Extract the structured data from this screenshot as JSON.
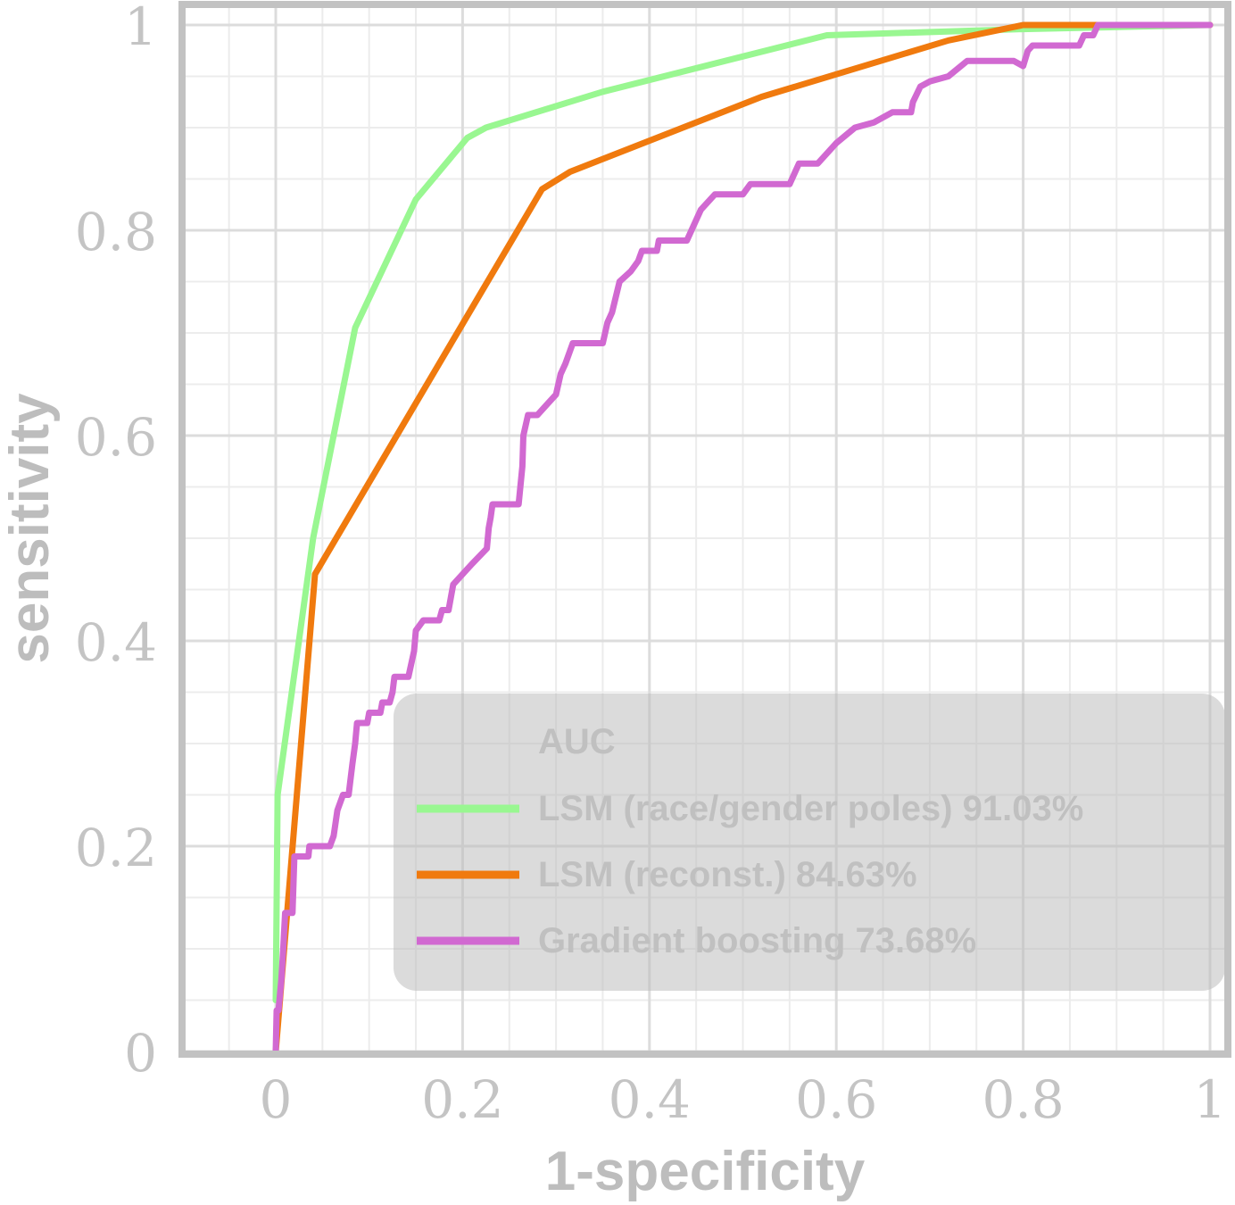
{
  "chart_data": {
    "type": "line",
    "xlabel": "1-specificity",
    "ylabel": "sensitivity",
    "xlim": [
      -0.1,
      1.0
    ],
    "ylim": [
      0,
      1.0
    ],
    "xticks": [
      0,
      0.2,
      0.4,
      0.6,
      0.8,
      1
    ],
    "yticks": [
      0,
      0.2,
      0.4,
      0.6,
      0.8,
      1
    ],
    "xtick_labels": [
      "0",
      "0.2",
      "0.4",
      "0.6",
      "0.8",
      "1"
    ],
    "ytick_labels": [
      "0",
      "0.2",
      "0.4",
      "0.6",
      "0.8",
      "1"
    ],
    "grid": true,
    "legend": {
      "title": "AUC",
      "position": "bottom-right"
    },
    "series": [
      {
        "name": "LSM (race/gender poles) 91.03%",
        "color": "#99f791",
        "points": [
          [
            0,
            0.05
          ],
          [
            0.002,
            0.25
          ],
          [
            0.04,
            0.5
          ],
          [
            0.085,
            0.705
          ],
          [
            0.15,
            0.83
          ],
          [
            0.205,
            0.89
          ],
          [
            0.225,
            0.9
          ],
          [
            0.35,
            0.935
          ],
          [
            0.59,
            0.99
          ],
          [
            0.8,
            0.996
          ],
          [
            1.0,
            1.0
          ]
        ]
      },
      {
        "name": "LSM (reconst.) 84.63%",
        "color": "#f07a0e",
        "points": [
          [
            0,
            0
          ],
          [
            0.042,
            0.465
          ],
          [
            0.285,
            0.84
          ],
          [
            0.315,
            0.857
          ],
          [
            0.52,
            0.93
          ],
          [
            0.72,
            0.985
          ],
          [
            0.8,
            1.0
          ],
          [
            1.0,
            1.0
          ]
        ]
      },
      {
        "name": "Gradient boosting 73.68%",
        "color": "#d169d1",
        "points": [
          [
            0,
            0
          ],
          [
            0.001,
            0.04
          ],
          [
            0.003,
            0.04
          ],
          [
            0.006,
            0.07
          ],
          [
            0.008,
            0.1
          ],
          [
            0.01,
            0.135
          ],
          [
            0.018,
            0.135
          ],
          [
            0.02,
            0.19
          ],
          [
            0.035,
            0.19
          ],
          [
            0.036,
            0.2
          ],
          [
            0.058,
            0.2
          ],
          [
            0.062,
            0.21
          ],
          [
            0.066,
            0.235
          ],
          [
            0.072,
            0.25
          ],
          [
            0.078,
            0.25
          ],
          [
            0.082,
            0.28
          ],
          [
            0.085,
            0.3
          ],
          [
            0.087,
            0.32
          ],
          [
            0.098,
            0.32
          ],
          [
            0.1,
            0.33
          ],
          [
            0.112,
            0.33
          ],
          [
            0.114,
            0.34
          ],
          [
            0.122,
            0.34
          ],
          [
            0.125,
            0.35
          ],
          [
            0.127,
            0.365
          ],
          [
            0.142,
            0.365
          ],
          [
            0.148,
            0.39
          ],
          [
            0.15,
            0.41
          ],
          [
            0.158,
            0.42
          ],
          [
            0.175,
            0.42
          ],
          [
            0.178,
            0.43
          ],
          [
            0.185,
            0.43
          ],
          [
            0.19,
            0.455
          ],
          [
            0.21,
            0.475
          ],
          [
            0.226,
            0.49
          ],
          [
            0.228,
            0.51
          ],
          [
            0.23,
            0.52
          ],
          [
            0.232,
            0.533
          ],
          [
            0.26,
            0.533
          ],
          [
            0.264,
            0.57
          ],
          [
            0.265,
            0.6
          ],
          [
            0.27,
            0.62
          ],
          [
            0.28,
            0.62
          ],
          [
            0.29,
            0.63
          ],
          [
            0.3,
            0.64
          ],
          [
            0.305,
            0.66
          ],
          [
            0.31,
            0.67
          ],
          [
            0.318,
            0.69
          ],
          [
            0.34,
            0.69
          ],
          [
            0.35,
            0.69
          ],
          [
            0.355,
            0.71
          ],
          [
            0.36,
            0.72
          ],
          [
            0.368,
            0.75
          ],
          [
            0.38,
            0.76
          ],
          [
            0.388,
            0.77
          ],
          [
            0.392,
            0.78
          ],
          [
            0.408,
            0.78
          ],
          [
            0.41,
            0.79
          ],
          [
            0.44,
            0.79
          ],
          [
            0.455,
            0.82
          ],
          [
            0.47,
            0.835
          ],
          [
            0.5,
            0.835
          ],
          [
            0.508,
            0.845
          ],
          [
            0.55,
            0.845
          ],
          [
            0.56,
            0.865
          ],
          [
            0.58,
            0.865
          ],
          [
            0.6,
            0.885
          ],
          [
            0.62,
            0.9
          ],
          [
            0.64,
            0.905
          ],
          [
            0.66,
            0.915
          ],
          [
            0.68,
            0.915
          ],
          [
            0.682,
            0.925
          ],
          [
            0.69,
            0.94
          ],
          [
            0.7,
            0.945
          ],
          [
            0.72,
            0.95
          ],
          [
            0.74,
            0.965
          ],
          [
            0.79,
            0.965
          ],
          [
            0.8,
            0.96
          ],
          [
            0.805,
            0.975
          ],
          [
            0.81,
            0.98
          ],
          [
            0.86,
            0.98
          ],
          [
            0.865,
            0.99
          ],
          [
            0.875,
            0.99
          ],
          [
            0.88,
            1.0
          ],
          [
            1.0,
            1.0
          ]
        ]
      }
    ]
  }
}
